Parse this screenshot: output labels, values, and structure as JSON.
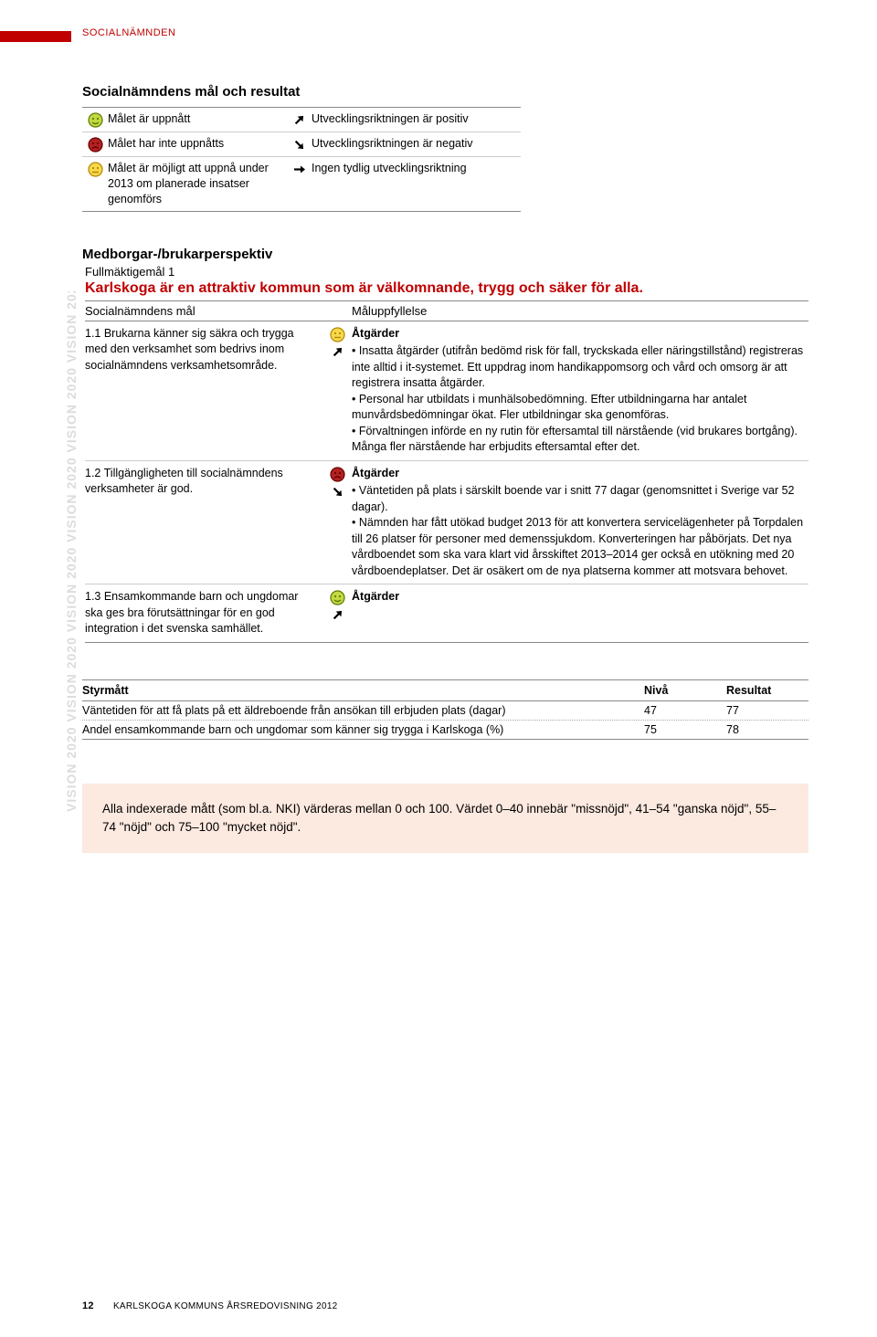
{
  "header": "SOCIALNÄMNDEN",
  "section_title": "Socialnämndens mål och resultat",
  "legend": {
    "rows": [
      {
        "icon": "happy",
        "text": "Målet är uppnått",
        "arrow": "up-right",
        "text2": "Utvecklingsriktningen är positiv"
      },
      {
        "icon": "sad",
        "text": "Målet har inte uppnåtts",
        "arrow": "down-right",
        "text2": "Utvecklingsriktningen är negativ"
      },
      {
        "icon": "neutral",
        "text": "Målet är möjligt att uppnå under 2013 om planerade insatser genomförs",
        "arrow": "right",
        "text2": "Ingen tydlig utvecklingsriktning"
      }
    ]
  },
  "vision_repeat": "VISION 2020   VISION 2020   VISION 2020   VISION 2020   VISION 2020   VISION 2020",
  "perspective_title": "Medborgar-/brukarperspektiv",
  "fm_label": "Fullmäktigemål 1",
  "red_heading": "Karlskoga är en attraktiv kommun som är välkomnande, trygg och säker för alla.",
  "gt_head_c1": "Socialnämndens mål",
  "gt_head_c2": "Måluppfyllelse",
  "goals": [
    {
      "col1": "1.1 Brukarna känner sig säkra och trygga med den verksamhet som bedrivs inom socialnämndens verksamhetsområde.",
      "face": "neutral",
      "arrow": "up-right",
      "atitle": "Åtgärder",
      "col2": "• Insatta åtgärder (utifrån bedömd risk för fall, tryckskada eller näringstillstånd) registreras inte alltid i it-systemet. Ett uppdrag inom handikappomsorg och vård och omsorg är att registrera insatta åtgärder.\n• Personal har utbildats i munhälsobedömning. Efter utbildningarna har antalet munvårdsbedömningar ökat. Fler utbildningar ska genomföras.\n• Förvaltningen införde en ny rutin för eftersamtal till närstående (vid brukares bortgång). Många fler närstående har erbjudits eftersamtal efter det."
    },
    {
      "col1": "1.2 Tillgängligheten till socialnämndens verksamheter är god.",
      "face": "sad",
      "arrow": "down-right",
      "atitle": "Åtgärder",
      "col2": "• Väntetiden på plats i särskilt boende var i snitt 77 dagar (genomsnittet i Sverige var 52 dagar).\n• Nämnden har fått utökad budget 2013 för att konvertera servicelägenheter på Torpdalen till 26 platser för personer med demenssjukdom. Konverteringen har påbörjats. Det nya vårdboendet som ska vara klart vid årsskiftet 2013–2014 ger också en utökning med 20 vårdboendeplatser. Det är osäkert om de nya platserna kommer att motsvara behovet."
    },
    {
      "col1": "1.3 Ensamkommande barn och ungdomar ska ges bra förutsättningar för en god integration i det svenska samhället.",
      "face": "happy",
      "arrow": "up-right",
      "atitle": "Åtgärder",
      "col2": ""
    }
  ],
  "styrmatt_head": {
    "s1": "Styrmått",
    "s2": "Nivå",
    "s3": "Resultat"
  },
  "styrmatt_rows": [
    {
      "s1": "Väntetiden för att få plats på ett äldreboende från ansökan till erbjuden plats (dagar)",
      "s2": "47",
      "s3": "77"
    },
    {
      "s1": "Andel ensamkommande barn och ungdomar som känner sig trygga i Karlskoga (%)",
      "s2": "75",
      "s3": "78"
    }
  ],
  "note": "Alla indexerade mått (som bl.a. NKI) värderas mellan 0 och 100. Värdet 0–40 innebär \"missnöjd\", 41–54 \"ganska nöjd\", 55–74 \"nöjd\" och 75–100 \"mycket nöjd\".",
  "footer_page": "12",
  "footer_text": "KARLSKOGA KOMMUNS ÅRSREDOVISNING 2012",
  "colors": {
    "happy_fill": "#c3d941",
    "happy_stroke": "#5a7a00",
    "neutral_fill": "#f7d94c",
    "neutral_stroke": "#b38600",
    "sad_fill": "#b22222",
    "sad_stroke": "#6b0000"
  }
}
